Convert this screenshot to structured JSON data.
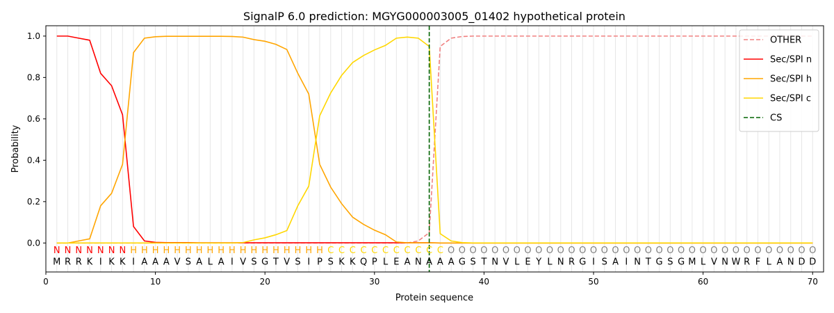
{
  "chart_data": {
    "type": "line",
    "title": "SignalP 6.0 prediction: MGYG000003005_01402 hypothetical protein",
    "xlabel": "Protein sequence",
    "ylabel": "Probability",
    "xlim": [
      0,
      71
    ],
    "ylim": [
      -0.14,
      1.05
    ],
    "xticks": [
      0,
      10,
      20,
      30,
      40,
      50,
      60,
      70
    ],
    "yticks": [
      0.0,
      0.2,
      0.4,
      0.6,
      0.8,
      1.0
    ],
    "grid": "vertical lines at each residue",
    "legend_position": "top-right",
    "sequence": "MRRKIKKIAAAVSALAIVSGTVSIPSKKQPLEANAAAGSTNVLEYLNRGISAINTGSGMLVNWRFLANDD",
    "labels": "NNNNNNNHHHHHHHHHHHHHHHHHHCCCCCCCCCCCOOOOOOOOOOOOOOOOOOOOOOOOOOOOOOOOOOO",
    "label_colors": {
      "N": "#ff0000",
      "H": "#ffa500",
      "C": "#ffd700",
      "O": "#808080"
    },
    "cleavage_site": 35,
    "series": [
      {
        "name": "OTHER",
        "color": "#f08080",
        "dash": "dashed",
        "values": [
          0,
          0,
          0,
          0,
          0,
          0,
          0,
          0,
          0,
          0,
          0,
          0,
          0,
          0,
          0,
          0,
          0,
          0,
          0,
          0,
          0,
          0,
          0,
          0,
          0,
          0,
          0,
          0,
          0,
          0,
          0,
          0,
          0,
          0.01,
          0.05,
          0.95,
          0.99,
          0.998,
          1,
          1,
          1,
          1,
          1,
          1,
          1,
          1,
          1,
          1,
          1,
          1,
          1,
          1,
          1,
          1,
          1,
          1,
          1,
          1,
          1,
          1,
          1,
          1,
          1,
          1,
          1,
          1,
          1,
          1,
          1,
          1
        ]
      },
      {
        "name": "Sec/SPI n",
        "color": "#ff0000",
        "dash": "solid",
        "values": [
          1.0,
          1.0,
          0.99,
          0.98,
          0.82,
          0.76,
          0.62,
          0.08,
          0.01,
          0.003,
          0.002,
          0.002,
          0.002,
          0.001,
          0.001,
          0.001,
          0.001,
          0.001,
          0.001,
          0.001,
          0.001,
          0.001,
          0.001,
          0.001,
          0.001,
          0.001,
          0.001,
          0.001,
          0.001,
          0.001,
          0.001,
          0.001,
          0.001,
          0.001,
          0.001,
          0,
          0,
          0,
          0,
          0,
          0,
          0,
          0,
          0,
          0,
          0,
          0,
          0,
          0,
          0,
          0,
          0,
          0,
          0,
          0,
          0,
          0,
          0,
          0,
          0,
          0,
          0,
          0,
          0,
          0,
          0,
          0,
          0,
          0,
          0
        ]
      },
      {
        "name": "Sec/SPI h",
        "color": "#ffa500",
        "dash": "solid",
        "values": [
          0.0,
          0.0,
          0.01,
          0.02,
          0.18,
          0.24,
          0.38,
          0.92,
          0.99,
          0.997,
          0.999,
          0.999,
          0.999,
          0.999,
          0.999,
          0.999,
          0.998,
          0.995,
          0.983,
          0.975,
          0.96,
          0.935,
          0.82,
          0.72,
          0.38,
          0.27,
          0.19,
          0.125,
          0.09,
          0.062,
          0.04,
          0.005,
          0.001,
          0.001,
          0.001,
          0,
          0,
          0,
          0,
          0,
          0,
          0,
          0,
          0,
          0,
          0,
          0,
          0,
          0,
          0,
          0,
          0,
          0,
          0,
          0,
          0,
          0,
          0,
          0,
          0,
          0,
          0,
          0,
          0,
          0,
          0,
          0,
          0,
          0,
          0
        ]
      },
      {
        "name": "Sec/SPI c",
        "color": "#ffd700",
        "dash": "solid",
        "values": [
          0,
          0,
          0,
          0,
          0,
          0,
          0,
          0,
          0,
          0,
          0,
          0,
          0,
          0,
          0,
          0,
          0,
          0.002,
          0.015,
          0.025,
          0.04,
          0.06,
          0.18,
          0.275,
          0.615,
          0.725,
          0.81,
          0.872,
          0.906,
          0.933,
          0.955,
          0.99,
          0.995,
          0.99,
          0.95,
          0.045,
          0.01,
          0.002,
          0,
          0,
          0,
          0,
          0,
          0,
          0,
          0,
          0,
          0,
          0,
          0,
          0,
          0,
          0,
          0,
          0,
          0,
          0,
          0,
          0,
          0,
          0,
          0,
          0,
          0,
          0,
          0,
          0,
          0,
          0,
          0
        ]
      },
      {
        "name": "CS",
        "color": "#006400",
        "dash": "dashed",
        "vertical_at": 35
      }
    ]
  }
}
